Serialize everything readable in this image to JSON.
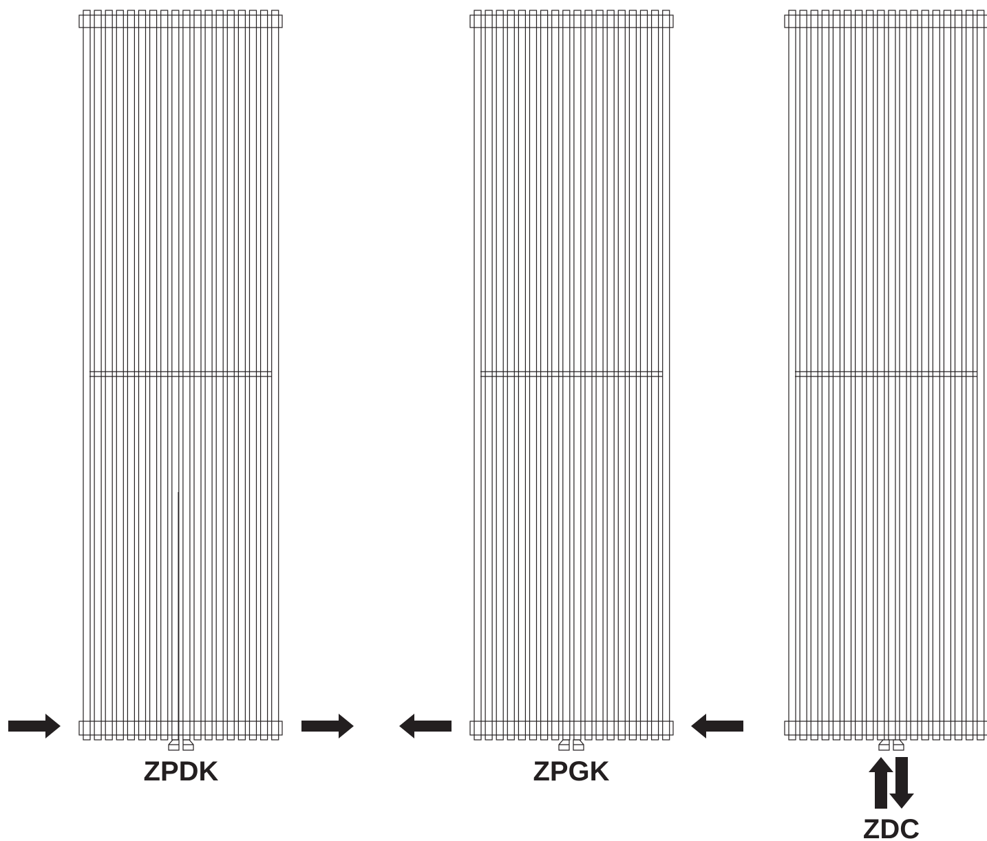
{
  "radiators": [
    {
      "label": "ZPDK"
    },
    {
      "label": "ZPGK"
    },
    {
      "label": "ZDC"
    }
  ]
}
